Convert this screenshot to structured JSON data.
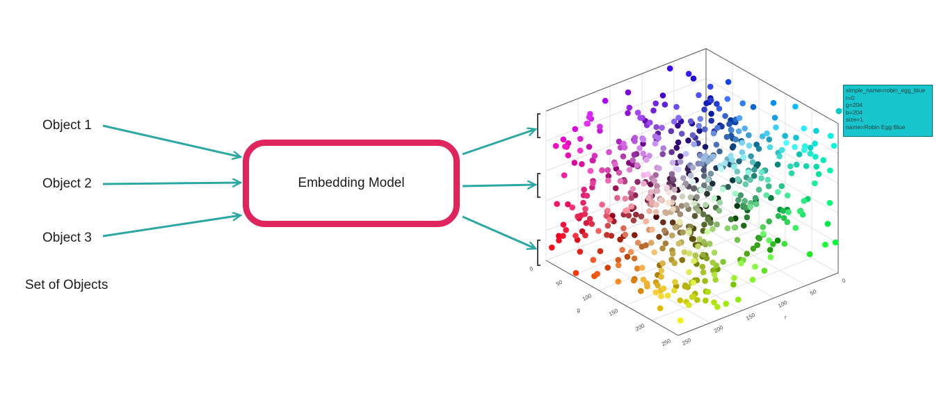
{
  "objects": {
    "items": [
      "Object 1",
      "Object 2",
      "Object 3"
    ],
    "set_label": "Set of Objects"
  },
  "model": {
    "label": "Embedding Model"
  },
  "plot": {
    "axis_ticks": {
      "r": [
        "0",
        "50",
        "100",
        "150",
        "200",
        "250"
      ],
      "g": [
        "0",
        "50",
        "100",
        "150",
        "200",
        "250"
      ],
      "b": [
        "0",
        "50",
        "100",
        "150",
        "200",
        "250"
      ]
    },
    "axis_labels": {
      "r": "r",
      "g": "g"
    },
    "tooltip": {
      "lines": [
        "simple_name=robin_egg_blue",
        "r=0",
        "g=204",
        "b=204",
        "size=1",
        "name=Robin Egg Blue"
      ],
      "color": "#17c6cc"
    }
  },
  "colors": {
    "arrow": "#2ba8a2",
    "box_border": "#e0245e"
  }
}
